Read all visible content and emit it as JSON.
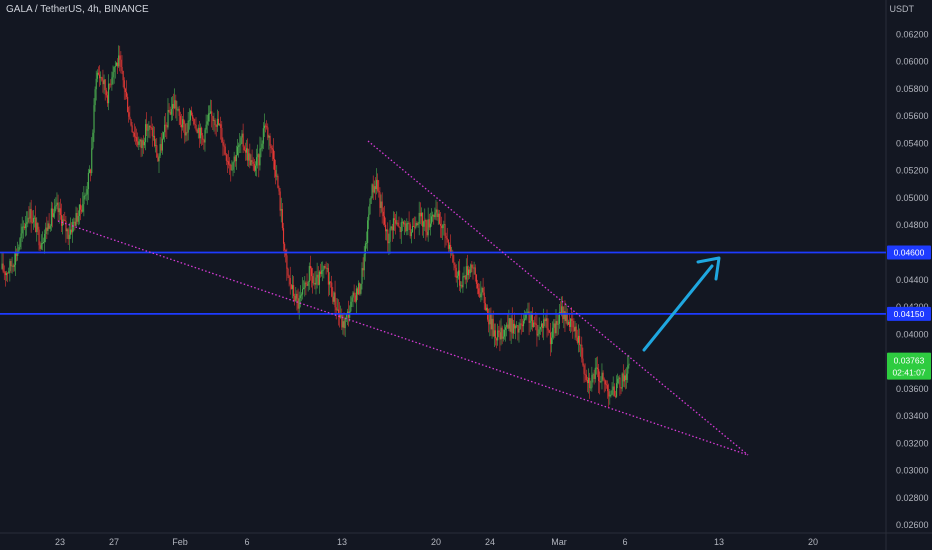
{
  "header": {
    "symbol_label": "GALA / TetherUS, 4h, BINANCE",
    "axis_unit": "USDT"
  },
  "colors": {
    "background": "#131722",
    "up": "#26a69a",
    "down": "#ef5350",
    "bull_green": "#4caf50",
    "bear_red": "#e53935",
    "level_line": "#1e3bff",
    "trendline": "#d63ad6",
    "arrow": "#1fa7e0",
    "price_badge": "#2ecc40",
    "axis_text": "#b2b5be"
  },
  "chart_data": {
    "type": "candlestick",
    "ylim": [
      0.0255,
      0.0632
    ],
    "yticks": [
      "0.02600",
      "0.02800",
      "0.03000",
      "0.03200",
      "0.03400",
      "0.03600",
      "0.03800",
      "0.04000",
      "0.04200",
      "0.04400",
      "0.04600",
      "0.04800",
      "0.05000",
      "0.05200",
      "0.05400",
      "0.05600",
      "0.05800",
      "0.06000",
      "0.06200"
    ],
    "xticks": [
      "23",
      "27",
      "Feb",
      "6",
      "13",
      "20",
      "24",
      "Mar",
      "6",
      "13",
      "20"
    ],
    "horizontal_levels": [
      {
        "price": 0.046,
        "label": "0.04600"
      },
      {
        "price": 0.0415,
        "label": "0.04150"
      }
    ],
    "last_price": {
      "label": "0.03763",
      "countdown": "02:41:07"
    },
    "trend_path": [
      0.0448,
      0.0446,
      0.0452,
      0.0462,
      0.0478,
      0.049,
      0.0482,
      0.0468,
      0.0476,
      0.0487,
      0.0492,
      0.0483,
      0.0474,
      0.0482,
      0.049,
      0.0502,
      0.0522,
      0.0592,
      0.0588,
      0.0575,
      0.0596,
      0.06,
      0.0582,
      0.0558,
      0.0545,
      0.0538,
      0.0552,
      0.0548,
      0.0528,
      0.0545,
      0.0563,
      0.057,
      0.0556,
      0.0548,
      0.0562,
      0.0553,
      0.0543,
      0.0558,
      0.056,
      0.0552,
      0.0534,
      0.0524,
      0.0533,
      0.0542,
      0.0532,
      0.0522,
      0.0528,
      0.0556,
      0.0542,
      0.0521,
      0.0488,
      0.0445,
      0.0432,
      0.0422,
      0.043,
      0.0445,
      0.0436,
      0.0442,
      0.0448,
      0.0432,
      0.0418,
      0.0406,
      0.0416,
      0.0428,
      0.0434,
      0.0462,
      0.0505,
      0.0512,
      0.0488,
      0.0469,
      0.0484,
      0.0477,
      0.0481,
      0.0474,
      0.0486,
      0.0484,
      0.0478,
      0.049,
      0.0484,
      0.0476,
      0.0466,
      0.0448,
      0.0438,
      0.0446,
      0.0452,
      0.0434,
      0.0428,
      0.0412,
      0.0402,
      0.0398,
      0.0406,
      0.0407,
      0.0402,
      0.0406,
      0.0414,
      0.0406,
      0.0403,
      0.0412,
      0.0398,
      0.0406,
      0.0417,
      0.0412,
      0.0404,
      0.0398,
      0.0376,
      0.0365,
      0.0372,
      0.0368,
      0.0362,
      0.0356,
      0.0362,
      0.0368,
      0.0376
    ]
  }
}
